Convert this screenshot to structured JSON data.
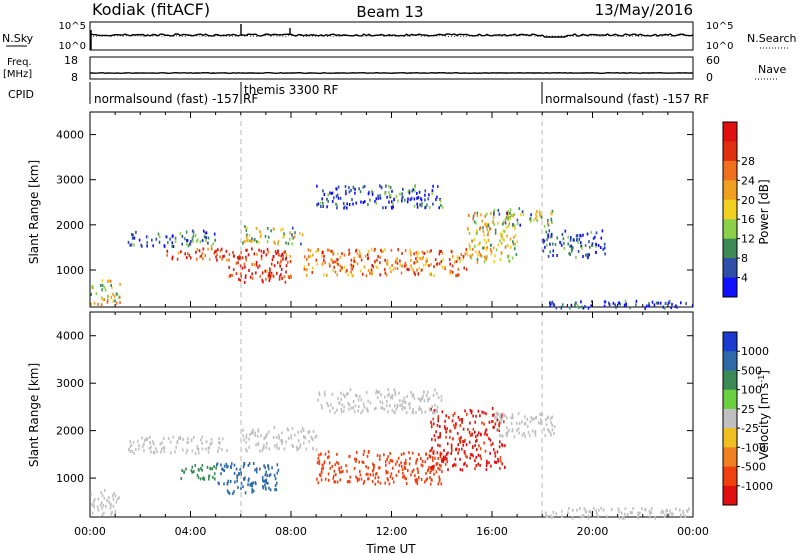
{
  "header": {
    "station": "Kodiak (fitACF)",
    "beam": "Beam 13",
    "date": "13/May/2016"
  },
  "summary_panels": {
    "nsky_label": "N.Sky",
    "nsearch_label": "N.Search",
    "freq_label_line1": "Freq.",
    "freq_label_line2": "[MHz]",
    "nave_label": "Nave",
    "cpid_label": "CPID",
    "left_ticks_top": [
      "10^5",
      "10^0"
    ],
    "right_ticks_top": [
      "10^5",
      "10^0"
    ],
    "left_ticks_freq": [
      "18",
      "8"
    ],
    "right_ticks_nave": [
      "60",
      "0"
    ],
    "cpid_segments": [
      {
        "start_hour": 0,
        "end_hour": 6,
        "label": "normalsound (fast) -157 RF"
      },
      {
        "start_hour": 6,
        "end_hour": 18,
        "label": "themis 3300 RF"
      },
      {
        "start_hour": 18,
        "end_hour": 24,
        "label": "normalsound (fast) -157 RF"
      }
    ]
  },
  "axes": {
    "ylabel": "Slant Range [km]",
    "xlabel": "Time UT",
    "yticks": [
      "1000",
      "2000",
      "3000",
      "4000"
    ],
    "xticks": [
      "00:00",
      "04:00",
      "08:00",
      "12:00",
      "16:00",
      "20:00",
      "00:00"
    ]
  },
  "power_colorbar": {
    "label": "Power [dB]",
    "ticks": [
      "4",
      "8",
      "12",
      "16",
      "20",
      "24",
      "28"
    ],
    "colors": [
      "#1010ff",
      "#2e4ea8",
      "#3a8a56",
      "#8ad048",
      "#f0d020",
      "#f0a020",
      "#f07020",
      "#e03010",
      "#e01010"
    ]
  },
  "velocity_colorbar": {
    "label": "Velocity [m s^-1]",
    "ticks": [
      "1000",
      "500",
      "100",
      "25",
      "-25",
      "-100",
      "-500",
      "-1000"
    ],
    "colors": [
      "#1a3ad0",
      "#2e6aa8",
      "#3a8a56",
      "#6ad040",
      "#c0c0c0",
      "#f0c020",
      "#f08020",
      "#f04010",
      "#e01010"
    ]
  },
  "chart_data": [
    {
      "type": "line",
      "title": "N.Sky / N.Search",
      "x_range_hours": [
        0,
        24
      ],
      "yscale": "log",
      "ylim": [
        1,
        100000
      ]
    },
    {
      "type": "line",
      "title": "Freq. / Nave",
      "x_range_hours": [
        0,
        24
      ],
      "ylim_freq_mhz": [
        8,
        18
      ],
      "ylim_nave": [
        0,
        60
      ]
    },
    {
      "type": "heatmap",
      "title": "Power [dB]",
      "x_range_hours": [
        0,
        24
      ],
      "ylim_km": [
        180,
        4500
      ],
      "clim": [
        0,
        30
      ],
      "blobs": [
        {
          "t0": 0.0,
          "t1": 1.2,
          "r0": 250,
          "r1": 800,
          "level": 0.55
        },
        {
          "t0": 1.5,
          "t1": 5.0,
          "r0": 1550,
          "r1": 1900,
          "level": 0.2
        },
        {
          "t0": 3.0,
          "t1": 5.5,
          "r0": 1250,
          "r1": 1500,
          "level": 0.85
        },
        {
          "t0": 5.5,
          "t1": 8.0,
          "r0": 750,
          "r1": 1500,
          "level": 0.9
        },
        {
          "t0": 6.0,
          "t1": 8.5,
          "r0": 1600,
          "r1": 2000,
          "level": 0.4
        },
        {
          "t0": 8.5,
          "t1": 15.0,
          "r0": 900,
          "r1": 1500,
          "level": 0.7
        },
        {
          "t0": 15.0,
          "t1": 17.0,
          "r0": 1200,
          "r1": 2300,
          "level": 0.5
        },
        {
          "t0": 16.0,
          "t1": 18.5,
          "r0": 2000,
          "r1": 2400,
          "level": 0.35
        },
        {
          "t0": 9.0,
          "t1": 14.0,
          "r0": 2400,
          "r1": 2900,
          "level": 0.15
        },
        {
          "t0": 18.0,
          "t1": 20.5,
          "r0": 1300,
          "r1": 1900,
          "level": 0.15
        },
        {
          "t0": 18.0,
          "t1": 24.0,
          "r0": 180,
          "r1": 350,
          "level": 0.1
        }
      ]
    },
    {
      "type": "heatmap",
      "title": "Velocity [m s^-1]",
      "x_range_hours": [
        0,
        24
      ],
      "ylim_km": [
        180,
        4500
      ],
      "clim": [
        -1000,
        1000
      ],
      "blobs": [
        {
          "t0": 0.0,
          "t1": 1.2,
          "r0": 250,
          "r1": 800,
          "vel": 0
        },
        {
          "t0": 1.5,
          "t1": 5.5,
          "r0": 1550,
          "r1": 1900,
          "vel": 0
        },
        {
          "t0": 3.5,
          "t1": 5.0,
          "r0": 1000,
          "r1": 1300,
          "vel": 150
        },
        {
          "t0": 5.0,
          "t1": 7.5,
          "r0": 700,
          "r1": 1350,
          "vel": 400
        },
        {
          "t0": 6.0,
          "t1": 9.0,
          "r0": 1600,
          "r1": 2100,
          "vel": 0
        },
        {
          "t0": 9.0,
          "t1": 14.0,
          "r0": 900,
          "r1": 1600,
          "vel": -450
        },
        {
          "t0": 13.5,
          "t1": 16.5,
          "r0": 1200,
          "r1": 2500,
          "vel": -800
        },
        {
          "t0": 16.0,
          "t1": 18.5,
          "r0": 1900,
          "r1": 2400,
          "vel": 0
        },
        {
          "t0": 9.0,
          "t1": 14.0,
          "r0": 2400,
          "r1": 2900,
          "vel": 0
        },
        {
          "t0": 18.0,
          "t1": 24.0,
          "r0": 180,
          "r1": 400,
          "vel": 0
        }
      ]
    }
  ]
}
